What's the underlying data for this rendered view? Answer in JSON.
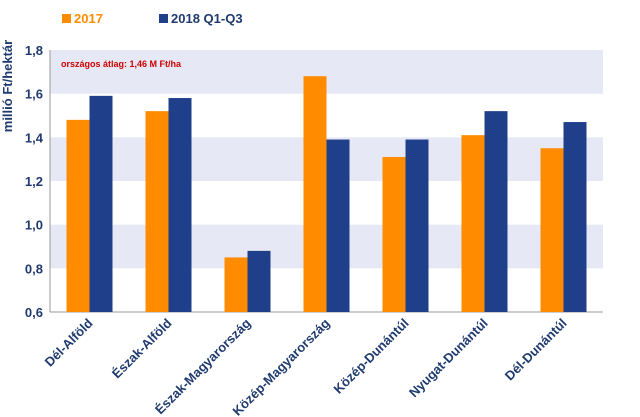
{
  "chart_data": {
    "type": "bar",
    "ylabel": "millió Ft/hektár",
    "ylim": [
      0.6,
      1.8
    ],
    "yticks": [
      "0,6",
      "0,8",
      "1,0",
      "1,2",
      "1,4",
      "1,6",
      "1,8"
    ],
    "ytick_values": [
      0.6,
      0.8,
      1.0,
      1.2,
      1.4,
      1.6,
      1.8
    ],
    "categories": [
      "Dél-Alföld",
      "Észak-Alföld",
      "Észak-Magyarország",
      "Közép-Magyarország",
      "Közép-Dunántúl",
      "Nyugat-Dunántúl",
      "Dél-Dunántúl"
    ],
    "series": [
      {
        "name": "2017",
        "color": "#ff8c00",
        "values": [
          1.48,
          1.52,
          0.85,
          1.68,
          1.31,
          1.41,
          1.35
        ]
      },
      {
        "name": "2018 Q1-Q3",
        "color": "#1f3f8a",
        "values": [
          1.59,
          1.58,
          0.88,
          1.39,
          1.39,
          1.52,
          1.47
        ]
      }
    ],
    "annotation": "országos átlag: 1,46 M Ft/ha",
    "annotation_color": "#cc0000",
    "band_color": "#e6e9f5",
    "legend_position": "top-left",
    "grid": true
  }
}
